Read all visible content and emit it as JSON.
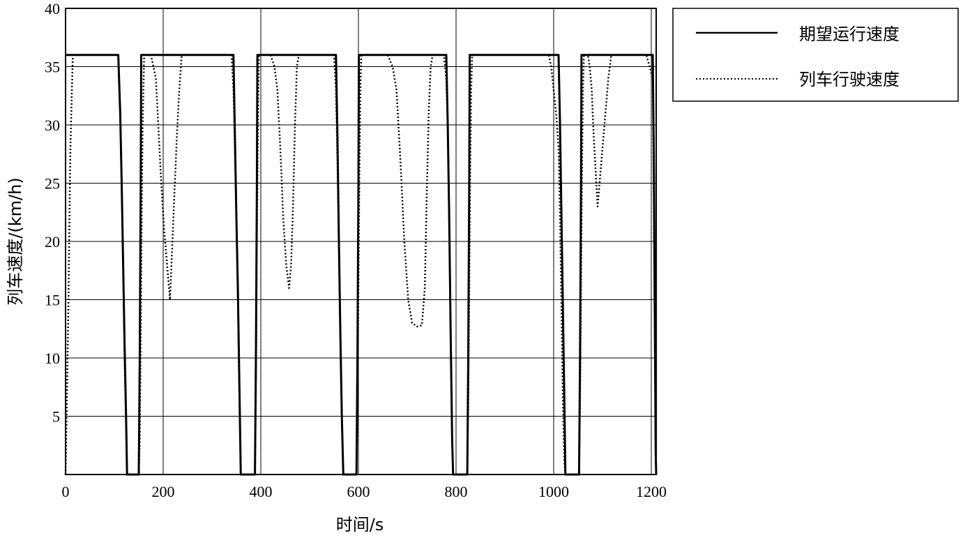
{
  "chart_data": {
    "type": "line",
    "xlabel": "时间/s",
    "ylabel": "列车速度/(km/h)",
    "xlim": [
      0,
      1210
    ],
    "ylim": [
      0,
      40
    ],
    "xticks": [
      0,
      200,
      400,
      600,
      800,
      1000,
      1200
    ],
    "yticks": [
      5,
      10,
      15,
      20,
      25,
      30,
      35,
      40
    ],
    "grid": true,
    "legend_position": "outside-top-right",
    "series": [
      {
        "name": "期望运行速度",
        "style": "solid",
        "color": "#000000",
        "points": [
          [
            0,
            36
          ],
          [
            108,
            36
          ],
          [
            112,
            31
          ],
          [
            115,
            25
          ],
          [
            118,
            18
          ],
          [
            121,
            11
          ],
          [
            124,
            5
          ],
          [
            126,
            0
          ],
          [
            150,
            0
          ],
          [
            152,
            10
          ],
          [
            154,
            25
          ],
          [
            155,
            36
          ],
          [
            344,
            36
          ],
          [
            347,
            29
          ],
          [
            350,
            22
          ],
          [
            353,
            16
          ],
          [
            356,
            8
          ],
          [
            359,
            0
          ],
          [
            388,
            0
          ],
          [
            390,
            10
          ],
          [
            392,
            25
          ],
          [
            393,
            36
          ],
          [
            554,
            36
          ],
          [
            557,
            29
          ],
          [
            560,
            20
          ],
          [
            563,
            12
          ],
          [
            566,
            5
          ],
          [
            569,
            0
          ],
          [
            596,
            0
          ],
          [
            598,
            10
          ],
          [
            600,
            25
          ],
          [
            601,
            36
          ],
          [
            780,
            36
          ],
          [
            783,
            30
          ],
          [
            786,
            22
          ],
          [
            789,
            12
          ],
          [
            792,
            3
          ],
          [
            794,
            0
          ],
          [
            823,
            0
          ],
          [
            825,
            10
          ],
          [
            827,
            25
          ],
          [
            828,
            36
          ],
          [
            1010,
            36
          ],
          [
            1013,
            30
          ],
          [
            1016,
            22
          ],
          [
            1019,
            14
          ],
          [
            1022,
            6
          ],
          [
            1024,
            0
          ],
          [
            1052,
            0
          ],
          [
            1054,
            10
          ],
          [
            1056,
            25
          ],
          [
            1057,
            36
          ],
          [
            1203,
            36
          ],
          [
            1205,
            28
          ],
          [
            1207,
            15
          ],
          [
            1209,
            2
          ],
          [
            1210,
            0
          ]
        ]
      },
      {
        "name": "列车行驶速度",
        "style": "dotted",
        "color": "#000000",
        "points": [
          [
            0,
            0
          ],
          [
            3,
            7
          ],
          [
            6,
            15
          ],
          [
            8,
            22
          ],
          [
            10,
            28
          ],
          [
            13,
            33
          ],
          [
            15,
            36
          ],
          [
            40,
            36
          ],
          [
            70,
            36
          ],
          [
            108,
            36
          ],
          [
            112,
            31
          ],
          [
            115,
            25
          ],
          [
            118,
            18
          ],
          [
            121,
            10
          ],
          [
            124,
            4
          ],
          [
            126,
            0
          ],
          [
            150,
            0
          ],
          [
            152,
            3
          ],
          [
            154,
            12
          ],
          [
            156,
            22
          ],
          [
            158,
            30
          ],
          [
            161,
            36
          ],
          [
            175,
            36
          ],
          [
            180,
            35
          ],
          [
            185,
            34
          ],
          [
            190,
            30
          ],
          [
            196,
            25
          ],
          [
            202,
            21
          ],
          [
            208,
            18
          ],
          [
            214,
            15
          ],
          [
            218,
            19
          ],
          [
            223,
            24
          ],
          [
            228,
            29
          ],
          [
            233,
            33
          ],
          [
            238,
            36
          ],
          [
            340,
            36
          ],
          [
            344,
            33
          ],
          [
            347,
            28
          ],
          [
            350,
            22
          ],
          [
            353,
            15
          ],
          [
            356,
            7
          ],
          [
            359,
            0
          ],
          [
            388,
            0
          ],
          [
            390,
            8
          ],
          [
            392,
            20
          ],
          [
            394,
            30
          ],
          [
            396,
            36
          ],
          [
            420,
            36
          ],
          [
            428,
            35
          ],
          [
            434,
            33
          ],
          [
            440,
            28
          ],
          [
            446,
            22
          ],
          [
            452,
            18
          ],
          [
            458,
            16
          ],
          [
            462,
            18
          ],
          [
            466,
            23
          ],
          [
            470,
            30
          ],
          [
            474,
            35
          ],
          [
            478,
            36
          ],
          [
            550,
            36
          ],
          [
            554,
            33
          ],
          [
            557,
            27
          ],
          [
            560,
            20
          ],
          [
            563,
            12
          ],
          [
            566,
            5
          ],
          [
            569,
            0
          ],
          [
            596,
            0
          ],
          [
            598,
            6
          ],
          [
            600,
            16
          ],
          [
            602,
            26
          ],
          [
            604,
            33
          ],
          [
            606,
            36
          ],
          [
            660,
            36
          ],
          [
            670,
            35
          ],
          [
            678,
            33
          ],
          [
            686,
            27
          ],
          [
            694,
            20
          ],
          [
            702,
            15
          ],
          [
            710,
            13
          ],
          [
            720,
            12.7
          ],
          [
            730,
            12.8
          ],
          [
            736,
            16
          ],
          [
            740,
            24
          ],
          [
            744,
            31
          ],
          [
            748,
            35
          ],
          [
            752,
            36
          ],
          [
            775,
            36
          ],
          [
            780,
            34
          ],
          [
            783,
            30
          ],
          [
            786,
            22
          ],
          [
            789,
            12
          ],
          [
            792,
            3
          ],
          [
            794,
            0
          ],
          [
            823,
            0
          ],
          [
            825,
            6
          ],
          [
            827,
            16
          ],
          [
            829,
            26
          ],
          [
            831,
            33
          ],
          [
            833,
            36
          ],
          [
            990,
            36
          ],
          [
            995,
            35
          ],
          [
            1000,
            33
          ],
          [
            1005,
            31
          ],
          [
            1010,
            28
          ],
          [
            1013,
            22
          ],
          [
            1016,
            14
          ],
          [
            1019,
            6
          ],
          [
            1022,
            1
          ],
          [
            1024,
            0
          ],
          [
            1052,
            0
          ],
          [
            1054,
            6
          ],
          [
            1056,
            16
          ],
          [
            1058,
            26
          ],
          [
            1060,
            33
          ],
          [
            1062,
            36
          ],
          [
            1070,
            36
          ],
          [
            1074,
            35
          ],
          [
            1078,
            33
          ],
          [
            1082,
            29
          ],
          [
            1086,
            26
          ],
          [
            1090,
            23
          ],
          [
            1094,
            25
          ],
          [
            1100,
            28
          ],
          [
            1106,
            31
          ],
          [
            1112,
            34
          ],
          [
            1118,
            36
          ],
          [
            1190,
            36
          ],
          [
            1203,
            34
          ],
          [
            1205,
            24
          ],
          [
            1207,
            12
          ],
          [
            1209,
            3
          ],
          [
            1210,
            0
          ]
        ]
      }
    ]
  }
}
